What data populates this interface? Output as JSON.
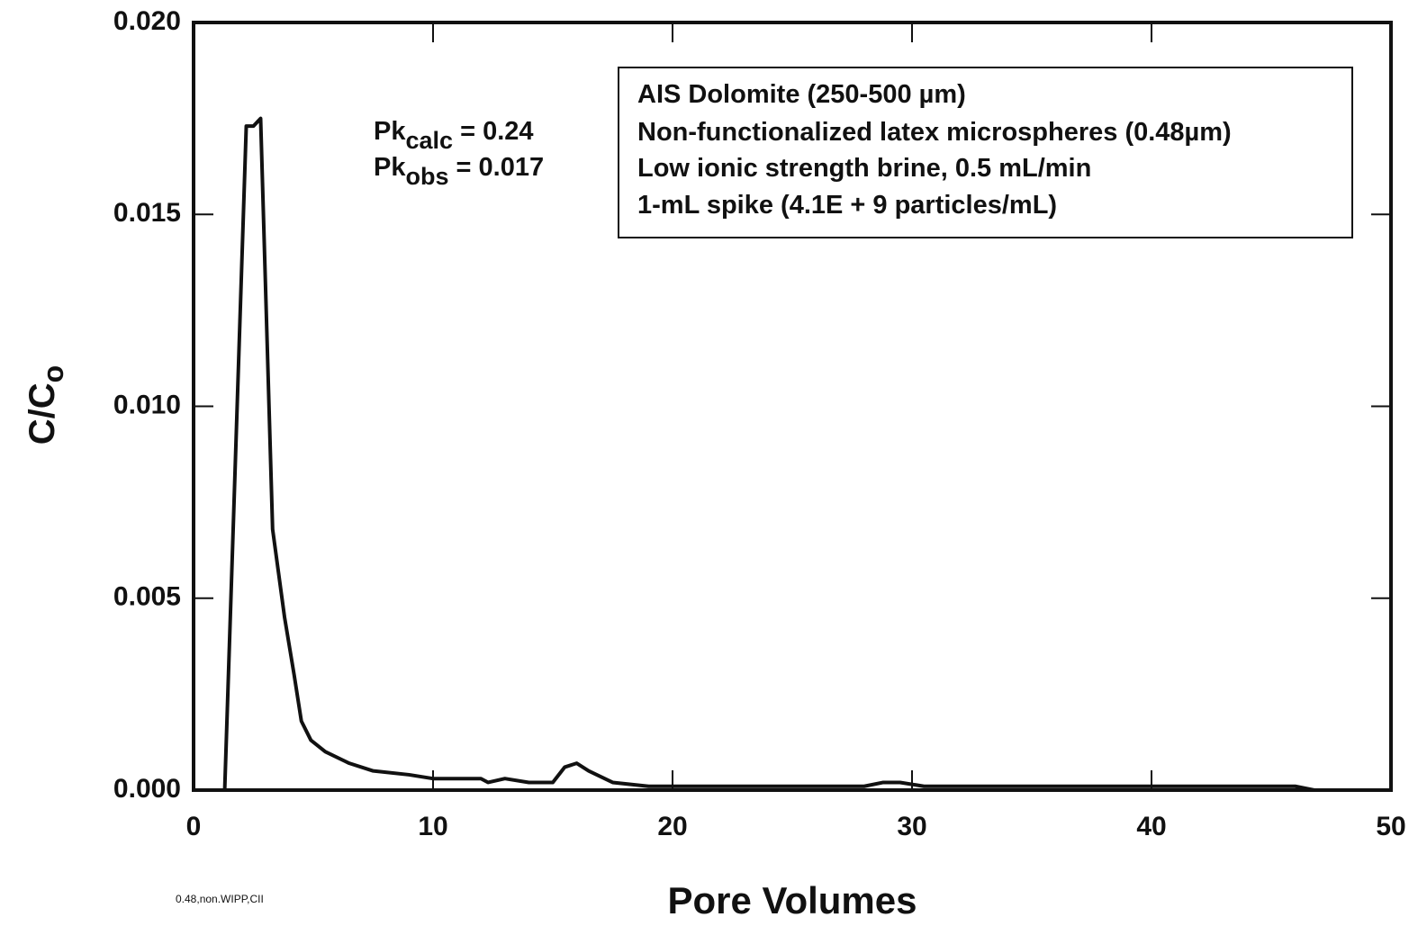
{
  "chart_data": {
    "type": "line",
    "x_label": "Pore Volumes",
    "y_label": {
      "main": "C/C",
      "sub": "o"
    },
    "annotations": [
      {
        "main": "Pk",
        "sub": "calc",
        "tail": " = 0.24"
      },
      {
        "main": "Pk",
        "sub": "obs",
        "tail": " = 0.017"
      }
    ],
    "legend_box": [
      "AIS Dolomite (250-500 µm)",
      "Non-functionalized latex microspheres (0.48µm)",
      "Low ionic strength brine, 0.5 mL/min",
      "1-mL spike (4.1E + 9 particles/mL)"
    ],
    "footnote": "0.48,non.WIPP,CII",
    "xlim": [
      0,
      50
    ],
    "xticks": [
      0,
      10,
      20,
      30,
      40,
      50
    ],
    "ylim": [
      0,
      0.02
    ],
    "yticks": [
      {
        "value": 0,
        "label": "0.000"
      },
      0.005,
      {
        "value": 0.01,
        "label": "0.010"
      },
      0.015,
      {
        "value": 0.02,
        "label": "0.020"
      }
    ],
    "series": [
      {
        "color": "#111111",
        "x": [
          1.3,
          2.2,
          2.5,
          2.8,
          3.3,
          3.8,
          4.2,
          4.5,
          4.9,
          5.5,
          6.5,
          7.5,
          9,
          10,
          12,
          12.3,
          13,
          14,
          15,
          15.5,
          16,
          16.5,
          17.5,
          19,
          28,
          28.8,
          29.5,
          30.5,
          34,
          35,
          45,
          46,
          46.8
        ],
        "values": [
          0,
          0.0173,
          0.0173,
          0.0175,
          0.0068,
          0.0045,
          0.003,
          0.0018,
          0.0013,
          0.001,
          0.0007,
          0.0005,
          0.0004,
          0.0003,
          0.0003,
          0.0002,
          0.0003,
          0.0002,
          0.0002,
          0.0006,
          0.0007,
          0.0005,
          0.0002,
          0.0001,
          0.0001,
          0.0002,
          0.0002,
          0.0001,
          0.0001,
          0.0001,
          0.0001,
          0.0001,
          0
        ]
      }
    ]
  }
}
